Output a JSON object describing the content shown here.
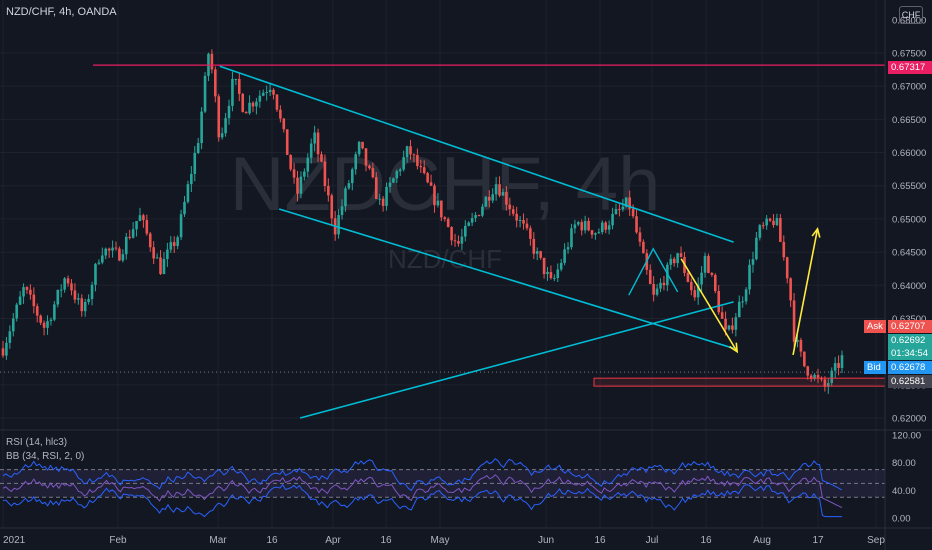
{
  "header": {
    "title": "NZD/CHF, 4h, OANDA",
    "currency_button": "CHF",
    "watermark_main": "NZDCHF, 4h",
    "watermark_sub": "NZD/CHF"
  },
  "indicators": {
    "rsi_label": "RSI (14, hlc3)",
    "bb_label": "BB (34, RSI, 2, 0)"
  },
  "price_tags": {
    "top_level": "0.67317",
    "ask_label": "Ask",
    "ask_price": "0.62707",
    "last_price": "0.62692",
    "countdown": "01:34:54",
    "bid_label": "Bid",
    "bid_price": "0.62678",
    "low_level": "0.62581"
  },
  "colors": {
    "background": "#131722",
    "grid": "#1e222d",
    "up": "#26a69a",
    "down": "#ef5350",
    "channel": "#00bcd4",
    "arrows": "#ffeb3b",
    "resistance": "#e91e63",
    "rsi": "#7e57c2",
    "bb": "#2962ff"
  },
  "chart_data": [
    {
      "type": "candlestick",
      "symbol": "NZD/CHF",
      "timeframe": "4h",
      "x_ticks": [
        "2021",
        "Feb",
        "Mar",
        "16",
        "Apr",
        "16",
        "May",
        "Jun",
        "16",
        "Jul",
        "16",
        "Aug",
        "17",
        "Sep"
      ],
      "y_ticks": [
        "0.67500",
        "0.67000",
        "0.66500",
        "0.66000",
        "0.65500",
        "0.65000",
        "0.64500",
        "0.64000",
        "0.63500",
        "0.62500",
        "0.62000"
      ],
      "ylim": [
        0.6195,
        0.6785
      ],
      "x_range_days": [
        0,
        247
      ],
      "series": [
        {
          "kind": "path_outline",
          "x_days": [
            0,
            6,
            12,
            18,
            23,
            28,
            33,
            39,
            45,
            50,
            56,
            59,
            62,
            66,
            69,
            77,
            84,
            89,
            95,
            102,
            108,
            116,
            122,
            130,
            141,
            149,
            157,
            164,
            170,
            179,
            186,
            193,
            198,
            201,
            207,
            212,
            216,
            221,
            225,
            226,
            229,
            235,
            240
          ],
          "y": [
            0.6305,
            0.6395,
            0.6335,
            0.6415,
            0.6355,
            0.6455,
            0.6445,
            0.6505,
            0.6425,
            0.6475,
            0.6625,
            0.676,
            0.662,
            0.671,
            0.6665,
            0.6705,
            0.6535,
            0.6625,
            0.6485,
            0.661,
            0.652,
            0.6605,
            0.6545,
            0.646,
            0.6555,
            0.6485,
            0.64,
            0.6495,
            0.648,
            0.6525,
            0.638,
            0.645,
            0.638,
            0.6445,
            0.632,
            0.639,
            0.648,
            0.65,
            0.64,
            0.633,
            0.628,
            0.6245,
            0.629
          ]
        }
      ],
      "annotations": {
        "resistance_level": 0.67317,
        "support_zone": [
          0.6248,
          0.626
        ],
        "channel_upper": [
          [
            62,
            0.673
          ],
          [
            209,
            0.6465
          ]
        ],
        "channel_lower": [
          [
            79,
            0.6515
          ],
          [
            209,
            0.6305
          ]
        ],
        "rising_trendline": [
          [
            85,
            0.62
          ],
          [
            209,
            0.6375
          ]
        ],
        "wedge": [
          [
            179,
            0.6385
          ],
          [
            186,
            0.6455
          ],
          [
            193,
            0.639
          ]
        ],
        "arrows": [
          {
            "from": [
              194,
              0.644
            ],
            "to": [
              210,
              0.63
            ]
          },
          {
            "from": [
              226,
              0.6295
            ],
            "to": [
              233,
              0.6485
            ]
          }
        ],
        "current_price": 0.62692,
        "dotted_price_line": 0.62692
      }
    },
    {
      "type": "line",
      "name": "RSI (14, hlc3)",
      "y_ticks": [
        "120.00",
        "80.00",
        "40.00",
        "0.00"
      ],
      "ylim": [
        -5,
        125
      ],
      "bands": [
        70,
        50,
        30
      ],
      "last_value": 15
    }
  ]
}
